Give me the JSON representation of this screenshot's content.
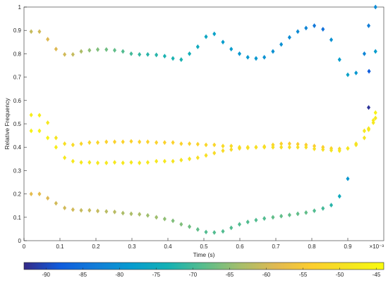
{
  "chart_data": {
    "type": "scatter",
    "xlabel": "Time (s)",
    "ylabel": "Relative Frequency",
    "x_exponent_label": "×10⁻³",
    "xlim": [
      0,
      1
    ],
    "ylim": [
      0,
      1
    ],
    "x_ticks": [
      "0",
      "0.1",
      "0.2",
      "0.3",
      "0.4",
      "0.5",
      "0.6",
      "0.7",
      "0.8",
      "0.9"
    ],
    "y_ticks": [
      "0",
      "0.1",
      "0.2",
      "0.3",
      "0.4",
      "0.5",
      "0.6",
      "0.7",
      "0.8",
      "0.9",
      "1"
    ],
    "marker": "diamond",
    "colormap": "parula",
    "color_limits": [
      -93,
      -44
    ],
    "colorbar": {
      "placement": "bottom",
      "ticks": [
        "-90",
        "-85",
        "-80",
        "-75",
        "-70",
        "-65",
        "-60",
        "-55",
        "-50",
        "-45"
      ],
      "tick_values": [
        -90,
        -85,
        -80,
        -75,
        -70,
        -65,
        -60,
        -55,
        -50,
        -45
      ]
    },
    "series": [
      {
        "points": [
          [
            0.02,
            0.895,
            -61
          ],
          [
            0.043,
            0.895,
            -60
          ],
          [
            0.066,
            0.862,
            -59
          ],
          [
            0.089,
            0.82,
            -59
          ],
          [
            0.113,
            0.797,
            -60
          ],
          [
            0.136,
            0.797,
            -61
          ],
          [
            0.159,
            0.81,
            -63
          ],
          [
            0.182,
            0.815,
            -65
          ],
          [
            0.205,
            0.818,
            -66
          ],
          [
            0.229,
            0.818,
            -67
          ],
          [
            0.252,
            0.815,
            -68
          ],
          [
            0.275,
            0.81,
            -69
          ],
          [
            0.298,
            0.8,
            -70
          ],
          [
            0.321,
            0.797,
            -71
          ],
          [
            0.344,
            0.797,
            -72
          ],
          [
            0.368,
            0.795,
            -72
          ],
          [
            0.391,
            0.79,
            -73
          ],
          [
            0.414,
            0.78,
            -73
          ],
          [
            0.437,
            0.775,
            -73
          ],
          [
            0.46,
            0.8,
            -74
          ],
          [
            0.483,
            0.83,
            -75
          ],
          [
            0.506,
            0.873,
            -76
          ],
          [
            0.529,
            0.885,
            -77
          ],
          [
            0.553,
            0.85,
            -78
          ],
          [
            0.576,
            0.82,
            -78
          ],
          [
            0.599,
            0.8,
            -79
          ],
          [
            0.622,
            0.785,
            -79
          ],
          [
            0.645,
            0.78,
            -79
          ],
          [
            0.668,
            0.785,
            -80
          ],
          [
            0.692,
            0.81,
            -80
          ],
          [
            0.715,
            0.84,
            -80
          ],
          [
            0.738,
            0.87,
            -81
          ],
          [
            0.761,
            0.895,
            -81
          ],
          [
            0.784,
            0.91,
            -82
          ],
          [
            0.807,
            0.92,
            -84
          ],
          [
            0.831,
            0.905,
            -85
          ],
          [
            0.854,
            0.86,
            -80
          ],
          [
            0.877,
            0.775,
            -78
          ],
          [
            0.9,
            0.71,
            -77
          ],
          [
            0.923,
            0.718,
            -79
          ],
          [
            0.946,
            0.8,
            -82
          ],
          [
            0.958,
            0.92,
            -83
          ],
          [
            0.959,
            0.725,
            -88
          ],
          [
            0.977,
            1.0,
            -81
          ],
          [
            0.977,
            0.81,
            -78
          ]
        ]
      },
      {
        "points": [
          [
            0.02,
            0.538,
            -47
          ],
          [
            0.043,
            0.537,
            -47
          ],
          [
            0.066,
            0.505,
            -48
          ],
          [
            0.089,
            0.44,
            -49
          ],
          [
            0.113,
            0.415,
            -50
          ],
          [
            0.136,
            0.41,
            -51
          ],
          [
            0.159,
            0.415,
            -52
          ],
          [
            0.182,
            0.42,
            -52
          ],
          [
            0.205,
            0.42,
            -52
          ],
          [
            0.229,
            0.423,
            -53
          ],
          [
            0.252,
            0.423,
            -53
          ],
          [
            0.275,
            0.423,
            -53
          ],
          [
            0.298,
            0.425,
            -53
          ],
          [
            0.321,
            0.423,
            -53
          ],
          [
            0.344,
            0.423,
            -53
          ],
          [
            0.368,
            0.42,
            -53
          ],
          [
            0.391,
            0.42,
            -53
          ],
          [
            0.414,
            0.42,
            -53
          ],
          [
            0.437,
            0.415,
            -53
          ],
          [
            0.46,
            0.415,
            -53
          ],
          [
            0.483,
            0.413,
            -53
          ],
          [
            0.506,
            0.41,
            -52
          ],
          [
            0.529,
            0.41,
            -52
          ],
          [
            0.553,
            0.405,
            -51
          ],
          [
            0.576,
            0.405,
            -51
          ],
          [
            0.599,
            0.4,
            -50
          ],
          [
            0.622,
            0.4,
            -50
          ],
          [
            0.645,
            0.4,
            -50
          ],
          [
            0.668,
            0.403,
            -51
          ],
          [
            0.692,
            0.41,
            -52
          ],
          [
            0.715,
            0.415,
            -53
          ],
          [
            0.738,
            0.415,
            -54
          ],
          [
            0.761,
            0.413,
            -54
          ],
          [
            0.784,
            0.41,
            -54
          ],
          [
            0.807,
            0.405,
            -54
          ],
          [
            0.831,
            0.4,
            -54
          ],
          [
            0.854,
            0.395,
            -53
          ],
          [
            0.877,
            0.393,
            -52
          ],
          [
            0.9,
            0.395,
            -51
          ],
          [
            0.923,
            0.41,
            -50
          ],
          [
            0.946,
            0.44,
            -49
          ],
          [
            0.958,
            0.475,
            -48
          ],
          [
            0.971,
            0.515,
            -47
          ],
          [
            0.977,
            0.548,
            -46
          ]
        ]
      },
      {
        "points": [
          [
            0.02,
            0.47,
            -46
          ],
          [
            0.043,
            0.47,
            -46
          ],
          [
            0.066,
            0.44,
            -46
          ],
          [
            0.089,
            0.4,
            -47
          ],
          [
            0.113,
            0.355,
            -48
          ],
          [
            0.136,
            0.34,
            -48
          ],
          [
            0.159,
            0.335,
            -48
          ],
          [
            0.182,
            0.335,
            -48
          ],
          [
            0.205,
            0.333,
            -48
          ],
          [
            0.229,
            0.333,
            -48
          ],
          [
            0.252,
            0.335,
            -48
          ],
          [
            0.275,
            0.333,
            -48
          ],
          [
            0.298,
            0.335,
            -48
          ],
          [
            0.321,
            0.333,
            -48
          ],
          [
            0.344,
            0.335,
            -48
          ],
          [
            0.368,
            0.34,
            -48
          ],
          [
            0.391,
            0.34,
            -48
          ],
          [
            0.414,
            0.34,
            -49
          ],
          [
            0.437,
            0.345,
            -49
          ],
          [
            0.46,
            0.35,
            -49
          ],
          [
            0.483,
            0.355,
            -50
          ],
          [
            0.506,
            0.365,
            -50
          ],
          [
            0.529,
            0.375,
            -51
          ],
          [
            0.553,
            0.385,
            -51
          ],
          [
            0.576,
            0.39,
            -51
          ],
          [
            0.599,
            0.395,
            -51
          ],
          [
            0.622,
            0.397,
            -50
          ],
          [
            0.645,
            0.4,
            -50
          ],
          [
            0.668,
            0.4,
            -50
          ],
          [
            0.692,
            0.4,
            -50
          ],
          [
            0.715,
            0.4,
            -50
          ],
          [
            0.738,
            0.4,
            -50
          ],
          [
            0.761,
            0.4,
            -50
          ],
          [
            0.784,
            0.4,
            -50
          ],
          [
            0.807,
            0.393,
            -50
          ],
          [
            0.831,
            0.39,
            -50
          ],
          [
            0.854,
            0.387,
            -49
          ],
          [
            0.877,
            0.385,
            -48
          ],
          [
            0.9,
            0.395,
            -48
          ],
          [
            0.923,
            0.415,
            -49
          ],
          [
            0.946,
            0.47,
            -48
          ],
          [
            0.958,
            0.48,
            -48
          ],
          [
            0.971,
            0.505,
            -48
          ],
          [
            0.977,
            0.525,
            -48
          ]
        ]
      },
      {
        "points": [
          [
            0.02,
            0.2,
            -58
          ],
          [
            0.043,
            0.2,
            -58
          ],
          [
            0.066,
            0.182,
            -59
          ],
          [
            0.089,
            0.16,
            -60
          ],
          [
            0.113,
            0.14,
            -60
          ],
          [
            0.136,
            0.133,
            -60
          ],
          [
            0.159,
            0.13,
            -61
          ],
          [
            0.182,
            0.13,
            -61
          ],
          [
            0.205,
            0.127,
            -61
          ],
          [
            0.229,
            0.125,
            -62
          ],
          [
            0.252,
            0.123,
            -62
          ],
          [
            0.275,
            0.118,
            -63
          ],
          [
            0.298,
            0.115,
            -63
          ],
          [
            0.321,
            0.113,
            -63
          ],
          [
            0.344,
            0.108,
            -64
          ],
          [
            0.368,
            0.1,
            -64
          ],
          [
            0.391,
            0.093,
            -65
          ],
          [
            0.414,
            0.085,
            -66
          ],
          [
            0.437,
            0.07,
            -66
          ],
          [
            0.46,
            0.06,
            -67
          ],
          [
            0.483,
            0.048,
            -68
          ],
          [
            0.506,
            0.037,
            -69
          ],
          [
            0.529,
            0.035,
            -69
          ],
          [
            0.553,
            0.04,
            -69
          ],
          [
            0.576,
            0.055,
            -69
          ],
          [
            0.599,
            0.07,
            -69
          ],
          [
            0.622,
            0.08,
            -69
          ],
          [
            0.645,
            0.088,
            -69
          ],
          [
            0.668,
            0.095,
            -69
          ],
          [
            0.692,
            0.1,
            -68
          ],
          [
            0.715,
            0.105,
            -68
          ],
          [
            0.738,
            0.11,
            -68
          ],
          [
            0.761,
            0.115,
            -68
          ],
          [
            0.784,
            0.12,
            -68
          ],
          [
            0.807,
            0.128,
            -69
          ],
          [
            0.831,
            0.138,
            -70
          ],
          [
            0.854,
            0.152,
            -72
          ],
          [
            0.877,
            0.19,
            -75
          ],
          [
            0.9,
            0.265,
            -79
          ],
          [
            0.958,
            0.57,
            -92
          ]
        ]
      }
    ]
  }
}
